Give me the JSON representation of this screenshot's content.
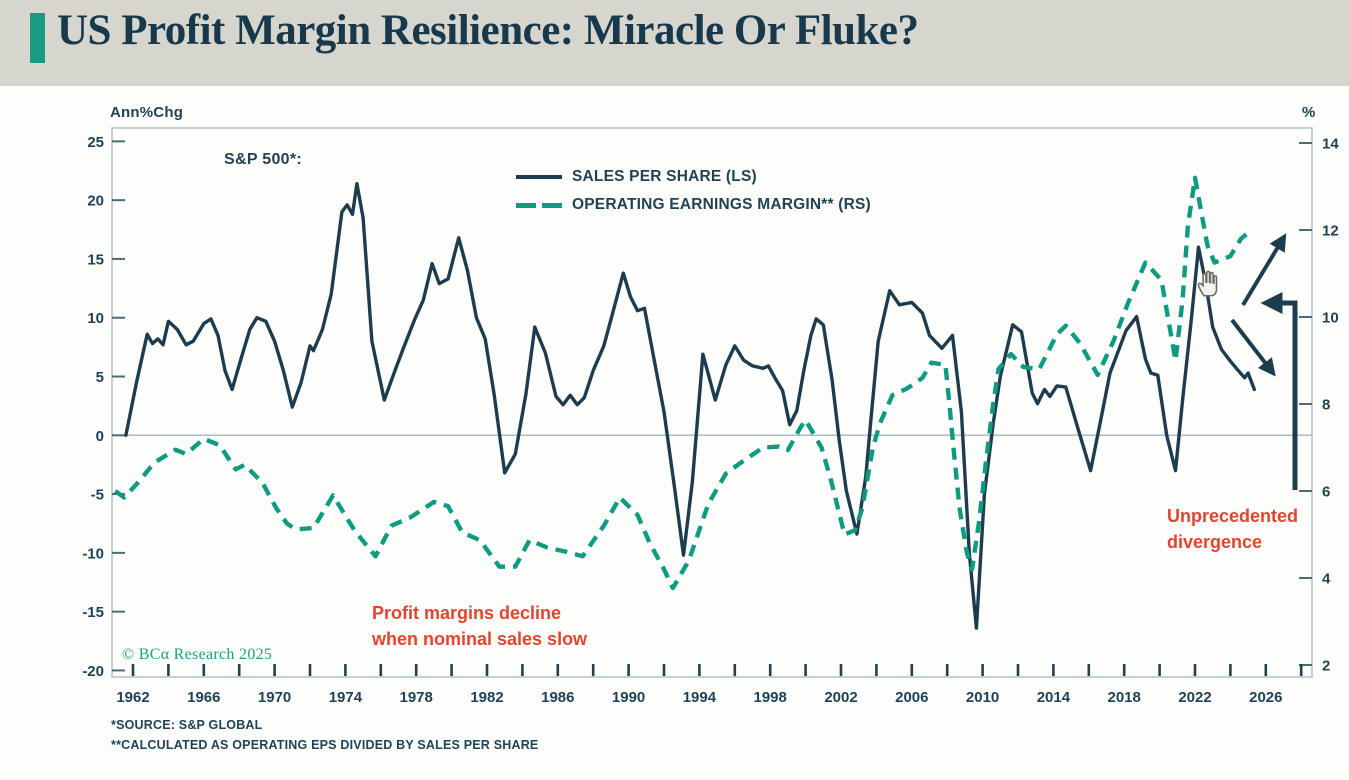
{
  "header": {
    "title": "US Profit Margin Resilience: Miracle Or Fluke?",
    "accent_color": "#199b82"
  },
  "chart": {
    "left_axis_title": "Ann%Chg",
    "right_axis_title": "%",
    "series_caption": "S&P 500*:",
    "legend": [
      {
        "label": "SALES PER SHARE (LS)",
        "style": "solid",
        "color": "#1d3c4e"
      },
      {
        "label": "OPERATING EARNINGS MARGIN** (RS)",
        "style": "dashed",
        "color": "#0f9b81"
      }
    ],
    "annotations": {
      "profit_margins": [
        "Profit margins decline",
        "when nominal sales slow"
      ],
      "divergence": [
        "Unprecedented",
        "divergence"
      ],
      "color": "#e2452f"
    },
    "copyright": "© BCα Research 2025",
    "footnotes": [
      "*SOURCE: S&P GLOBAL",
      "**CALCULATED AS OPERATING EPS DIVIDED BY SALES PER SHARE"
    ]
  },
  "chart_data": {
    "type": "line",
    "title": "US Profit Margin Resilience: Miracle Or Fluke?",
    "subtitle": "S&P 500*:",
    "legend_position": "top-center",
    "grid": false,
    "x_axis": {
      "min_year": 1962,
      "max_year": 2028,
      "tick_step_years": 2,
      "label_years": [
        1962,
        1966,
        1970,
        1974,
        1978,
        1982,
        1986,
        1990,
        1994,
        1998,
        2002,
        2006,
        2010,
        2014,
        2018,
        2022,
        2026
      ]
    },
    "left_axis": {
      "title": "Ann%Chg",
      "min": -20,
      "max": 25,
      "ticks": [
        25,
        20,
        15,
        10,
        5,
        0,
        -5,
        -10,
        -15,
        -20
      ]
    },
    "right_axis": {
      "title": "%",
      "min": 2,
      "max": 14,
      "ticks": [
        14,
        12,
        10,
        8,
        6,
        4,
        2
      ]
    },
    "zero_reference_left": 0,
    "series": [
      {
        "name": "SALES PER SHARE (LS)",
        "axis": "left",
        "style": "solid",
        "color": "#1d3c4e",
        "points": [
          [
            1961.6,
            0.0
          ],
          [
            1962.2,
            4.5
          ],
          [
            1962.8,
            8.6
          ],
          [
            1963.1,
            7.8
          ],
          [
            1963.4,
            8.2
          ],
          [
            1963.7,
            7.7
          ],
          [
            1964.0,
            9.7
          ],
          [
            1964.5,
            9.0
          ],
          [
            1965.0,
            7.7
          ],
          [
            1965.4,
            8.0
          ],
          [
            1966.0,
            9.5
          ],
          [
            1966.4,
            9.9
          ],
          [
            1966.8,
            8.5
          ],
          [
            1967.2,
            5.5
          ],
          [
            1967.6,
            3.9
          ],
          [
            1968.1,
            6.5
          ],
          [
            1968.6,
            9.0
          ],
          [
            1969.0,
            10.0
          ],
          [
            1969.5,
            9.7
          ],
          [
            1970.0,
            8.0
          ],
          [
            1970.5,
            5.5
          ],
          [
            1971.0,
            2.4
          ],
          [
            1971.5,
            4.5
          ],
          [
            1972.0,
            7.6
          ],
          [
            1972.2,
            7.2
          ],
          [
            1972.7,
            9.0
          ],
          [
            1973.2,
            12.0
          ],
          [
            1973.8,
            19.0
          ],
          [
            1974.1,
            19.6
          ],
          [
            1974.4,
            18.8
          ],
          [
            1974.65,
            21.4
          ],
          [
            1975.0,
            18.5
          ],
          [
            1975.5,
            8.0
          ],
          [
            1976.2,
            3.0
          ],
          [
            1976.8,
            5.5
          ],
          [
            1977.3,
            7.5
          ],
          [
            1977.9,
            9.8
          ],
          [
            1978.4,
            11.5
          ],
          [
            1978.9,
            14.6
          ],
          [
            1979.3,
            12.9
          ],
          [
            1979.8,
            13.3
          ],
          [
            1980.4,
            16.8
          ],
          [
            1980.9,
            14.0
          ],
          [
            1981.4,
            10.0
          ],
          [
            1981.9,
            8.2
          ],
          [
            1982.4,
            3.5
          ],
          [
            1983.0,
            -3.2
          ],
          [
            1983.6,
            -1.6
          ],
          [
            1984.2,
            3.5
          ],
          [
            1984.7,
            9.2
          ],
          [
            1985.3,
            7.0
          ],
          [
            1985.9,
            3.3
          ],
          [
            1986.3,
            2.6
          ],
          [
            1986.7,
            3.4
          ],
          [
            1987.1,
            2.6
          ],
          [
            1987.5,
            3.2
          ],
          [
            1988.0,
            5.5
          ],
          [
            1988.6,
            7.6
          ],
          [
            1989.1,
            10.4
          ],
          [
            1989.7,
            13.8
          ],
          [
            1990.1,
            11.8
          ],
          [
            1990.5,
            10.6
          ],
          [
            1990.9,
            10.8
          ],
          [
            1991.5,
            6.0
          ],
          [
            1992.0,
            2.0
          ],
          [
            1992.6,
            -4.5
          ],
          [
            1993.1,
            -10.2
          ],
          [
            1993.6,
            -4.0
          ],
          [
            1994.2,
            6.9
          ],
          [
            1994.9,
            3.0
          ],
          [
            1995.5,
            6.0
          ],
          [
            1996.0,
            7.6
          ],
          [
            1996.5,
            6.4
          ],
          [
            1997.0,
            5.9
          ],
          [
            1997.6,
            5.7
          ],
          [
            1997.9,
            5.9
          ],
          [
            1998.3,
            4.8
          ],
          [
            1998.7,
            3.8
          ],
          [
            1999.1,
            0.9
          ],
          [
            1999.5,
            2.1
          ],
          [
            1999.9,
            5.5
          ],
          [
            2000.3,
            8.5
          ],
          [
            2000.6,
            9.9
          ],
          [
            2001.0,
            9.4
          ],
          [
            2001.5,
            4.7
          ],
          [
            2001.9,
            -0.4
          ],
          [
            2002.3,
            -4.7
          ],
          [
            2002.9,
            -8.4
          ],
          [
            2003.4,
            -3.5
          ],
          [
            2003.7,
            1.5
          ],
          [
            2004.1,
            8.0
          ],
          [
            2004.75,
            12.3
          ],
          [
            2005.3,
            11.1
          ],
          [
            2006.0,
            11.3
          ],
          [
            2006.6,
            10.4
          ],
          [
            2007.0,
            8.5
          ],
          [
            2007.7,
            7.4
          ],
          [
            2008.3,
            8.5
          ],
          [
            2008.8,
            2.0
          ],
          [
            2009.25,
            -10.0
          ],
          [
            2009.65,
            -16.4
          ],
          [
            2010.1,
            -5.0
          ],
          [
            2010.6,
            1.0
          ],
          [
            2011.0,
            5.0
          ],
          [
            2011.7,
            9.4
          ],
          [
            2012.2,
            8.8
          ],
          [
            2012.8,
            3.6
          ],
          [
            2013.1,
            2.7
          ],
          [
            2013.5,
            3.9
          ],
          [
            2013.8,
            3.3
          ],
          [
            2014.2,
            4.2
          ],
          [
            2014.7,
            4.1
          ],
          [
            2015.4,
            0.5
          ],
          [
            2016.1,
            -3.0
          ],
          [
            2016.7,
            1.5
          ],
          [
            2017.2,
            5.3
          ],
          [
            2018.1,
            8.9
          ],
          [
            2018.7,
            10.1
          ],
          [
            2019.2,
            6.5
          ],
          [
            2019.5,
            5.3
          ],
          [
            2019.9,
            5.1
          ],
          [
            2020.4,
            0.0
          ],
          [
            2020.9,
            -3.0
          ],
          [
            2021.3,
            3.0
          ],
          [
            2021.8,
            10.0
          ],
          [
            2022.2,
            16.0
          ],
          [
            2022.6,
            13.0
          ],
          [
            2023.0,
            9.2
          ],
          [
            2023.5,
            7.3
          ],
          [
            2024.0,
            6.3
          ],
          [
            2024.5,
            5.4
          ],
          [
            2024.8,
            4.9
          ],
          [
            2025.0,
            5.3
          ],
          [
            2025.35,
            3.9
          ]
        ]
      },
      {
        "name": "OPERATING EARNINGS MARGIN** (RS)",
        "axis": "right",
        "style": "dashed",
        "color": "#0f9b81",
        "points": [
          [
            1961.0,
            6.0
          ],
          [
            1961.5,
            5.85
          ],
          [
            1962.3,
            6.2
          ],
          [
            1963.2,
            6.65
          ],
          [
            1964.4,
            6.95
          ],
          [
            1965.0,
            6.85
          ],
          [
            1966.0,
            7.2
          ],
          [
            1966.9,
            7.05
          ],
          [
            1967.8,
            6.5
          ],
          [
            1968.3,
            6.6
          ],
          [
            1969.3,
            6.2
          ],
          [
            1970.1,
            5.6
          ],
          [
            1970.7,
            5.25
          ],
          [
            1971.2,
            5.12
          ],
          [
            1972.2,
            5.15
          ],
          [
            1973.3,
            5.9
          ],
          [
            1974.5,
            5.1
          ],
          [
            1975.7,
            4.5
          ],
          [
            1976.6,
            5.2
          ],
          [
            1977.7,
            5.4
          ],
          [
            1979.0,
            5.75
          ],
          [
            1979.8,
            5.65
          ],
          [
            1980.6,
            5.05
          ],
          [
            1981.6,
            4.87
          ],
          [
            1982.7,
            4.26
          ],
          [
            1983.6,
            4.26
          ],
          [
            1984.4,
            4.87
          ],
          [
            1985.4,
            4.7
          ],
          [
            1986.5,
            4.6
          ],
          [
            1987.4,
            4.5
          ],
          [
            1988.6,
            5.2
          ],
          [
            1989.5,
            5.85
          ],
          [
            1990.5,
            5.45
          ],
          [
            1991.2,
            4.8
          ],
          [
            1992.0,
            4.2
          ],
          [
            1992.5,
            3.77
          ],
          [
            1993.4,
            4.4
          ],
          [
            1994.5,
            5.7
          ],
          [
            1995.5,
            6.4
          ],
          [
            1996.4,
            6.67
          ],
          [
            1997.6,
            7.0
          ],
          [
            1998.5,
            7.02
          ],
          [
            1999.0,
            6.94
          ],
          [
            1999.7,
            7.45
          ],
          [
            2000.0,
            7.63
          ],
          [
            2000.9,
            7.0
          ],
          [
            2001.4,
            6.3
          ],
          [
            2002.2,
            5.0
          ],
          [
            2002.8,
            5.1
          ],
          [
            2003.2,
            5.6
          ],
          [
            2003.8,
            7.0
          ],
          [
            2004.2,
            7.55
          ],
          [
            2004.9,
            8.2
          ],
          [
            2005.7,
            8.35
          ],
          [
            2006.6,
            8.6
          ],
          [
            2007.1,
            8.95
          ],
          [
            2007.9,
            8.9
          ],
          [
            2008.1,
            8.1
          ],
          [
            2008.4,
            6.8
          ],
          [
            2008.7,
            5.6
          ],
          [
            2009.1,
            4.6
          ],
          [
            2009.4,
            4.2
          ],
          [
            2009.8,
            5.3
          ],
          [
            2010.2,
            6.7
          ],
          [
            2010.6,
            8.0
          ],
          [
            2010.9,
            8.8
          ],
          [
            2011.6,
            9.15
          ],
          [
            2012.3,
            8.85
          ],
          [
            2013.2,
            8.8
          ],
          [
            2014.2,
            9.6
          ],
          [
            2014.7,
            9.8
          ],
          [
            2015.5,
            9.4
          ],
          [
            2016.5,
            8.67
          ],
          [
            2017.4,
            9.45
          ],
          [
            2018.2,
            10.3
          ],
          [
            2019.2,
            11.25
          ],
          [
            2020.1,
            10.85
          ],
          [
            2020.9,
            9.0
          ],
          [
            2021.3,
            10.4
          ],
          [
            2021.6,
            12.1
          ],
          [
            2022.0,
            13.2
          ],
          [
            2022.7,
            11.65
          ],
          [
            2023.1,
            11.25
          ],
          [
            2024.0,
            11.4
          ],
          [
            2024.6,
            11.8
          ],
          [
            2025.2,
            12.0
          ]
        ]
      }
    ]
  }
}
